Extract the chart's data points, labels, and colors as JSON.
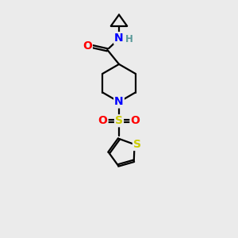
{
  "background_color": "#ebebeb",
  "line_color": "#000000",
  "bond_width": 1.6,
  "atom_colors": {
    "O": "#ff0000",
    "N": "#0000ff",
    "S_sulfonyl": "#cccc00",
    "S_thiophene": "#cccc00",
    "H": "#5a9a9a",
    "C": "#000000"
  },
  "font_size_atoms": 10,
  "font_size_H": 8.5
}
